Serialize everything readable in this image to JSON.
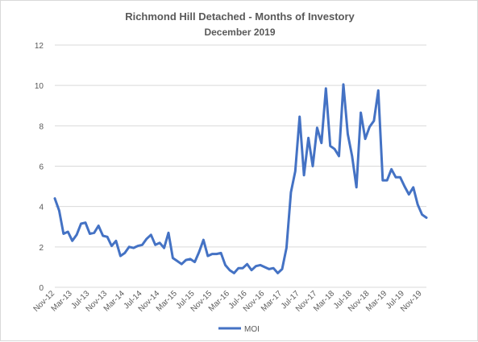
{
  "chart_data": {
    "type": "line",
    "title": "Richmond Hill Detached - Months of Investory",
    "subtitle": "December 2019",
    "xlabel": "",
    "ylabel": "",
    "ylim": [
      0,
      12
    ],
    "yticks": [
      0,
      2,
      4,
      6,
      8,
      10,
      12
    ],
    "grid": "horizontal",
    "legend_position": "bottom",
    "x_tick_labels": [
      "Nov-12",
      "Mar-13",
      "Jul-13",
      "Nov-13",
      "Mar-14",
      "Jul-14",
      "Nov-14",
      "Mar-15",
      "Jul-15",
      "Nov-15",
      "Mar-16",
      "Jul-16",
      "Nov-16",
      "Mar-17",
      "Jul-17",
      "Nov-17",
      "Mar-18",
      "Jul-18",
      "Nov-18",
      "Mar-19",
      "Jul-19",
      "Nov-19"
    ],
    "x": [
      "Nov-12",
      "Dec-12",
      "Jan-13",
      "Feb-13",
      "Mar-13",
      "Apr-13",
      "May-13",
      "Jun-13",
      "Jul-13",
      "Aug-13",
      "Sep-13",
      "Oct-13",
      "Nov-13",
      "Dec-13",
      "Jan-14",
      "Feb-14",
      "Mar-14",
      "Apr-14",
      "May-14",
      "Jun-14",
      "Jul-14",
      "Aug-14",
      "Sep-14",
      "Oct-14",
      "Nov-14",
      "Dec-14",
      "Jan-15",
      "Feb-15",
      "Mar-15",
      "Apr-15",
      "May-15",
      "Jun-15",
      "Jul-15",
      "Aug-15",
      "Sep-15",
      "Oct-15",
      "Nov-15",
      "Dec-15",
      "Jan-16",
      "Feb-16",
      "Mar-16",
      "Apr-16",
      "May-16",
      "Jun-16",
      "Jul-16",
      "Aug-16",
      "Sep-16",
      "Oct-16",
      "Nov-16",
      "Dec-16",
      "Jan-17",
      "Feb-17",
      "Mar-17",
      "Apr-17",
      "May-17",
      "Jun-17",
      "Jul-17",
      "Aug-17",
      "Sep-17",
      "Oct-17",
      "Nov-17",
      "Dec-17",
      "Jan-18",
      "Feb-18",
      "Mar-18",
      "Apr-18",
      "May-18",
      "Jun-18",
      "Jul-18",
      "Aug-18",
      "Sep-18",
      "Oct-18",
      "Nov-18",
      "Dec-18",
      "Jan-19",
      "Feb-19",
      "Mar-19",
      "Apr-19",
      "May-19",
      "Jun-19",
      "Jul-19",
      "Aug-19",
      "Sep-19",
      "Oct-19",
      "Nov-19",
      "Dec-19"
    ],
    "series": [
      {
        "name": "MOI",
        "color": "#4472c4",
        "values": [
          4.4,
          3.8,
          2.65,
          2.75,
          2.3,
          2.6,
          3.15,
          3.2,
          2.65,
          2.7,
          3.05,
          2.55,
          2.5,
          2.05,
          2.3,
          1.55,
          1.7,
          2.0,
          1.95,
          2.05,
          2.1,
          2.4,
          2.6,
          2.1,
          2.2,
          1.95,
          2.7,
          1.45,
          1.3,
          1.15,
          1.35,
          1.4,
          1.25,
          1.75,
          2.35,
          1.55,
          1.65,
          1.65,
          1.7,
          1.1,
          0.85,
          0.7,
          0.95,
          0.95,
          1.15,
          0.85,
          1.05,
          1.1,
          1.0,
          0.9,
          0.95,
          0.7,
          0.9,
          1.95,
          4.7,
          5.75,
          8.45,
          5.55,
          7.4,
          6.0,
          7.9,
          7.15,
          9.85,
          7.0,
          6.85,
          6.5,
          10.05,
          7.6,
          6.5,
          4.95,
          8.65,
          7.35,
          7.95,
          8.25,
          9.75,
          5.3,
          5.3,
          5.85,
          5.45,
          5.45,
          5.0,
          4.6,
          4.95,
          4.1,
          3.6,
          3.45
        ]
      }
    ]
  }
}
